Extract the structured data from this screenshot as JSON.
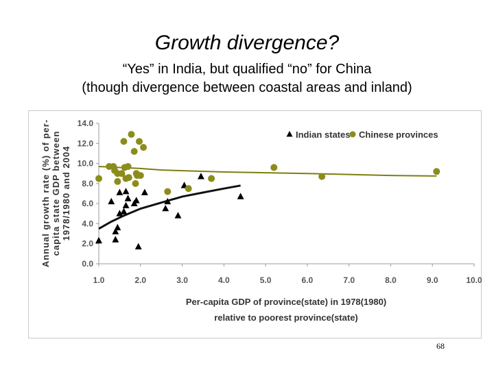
{
  "slide": {
    "title": "Growth divergence?",
    "subtitle_line1": "“Yes” in India, but qualified “no” for China",
    "subtitle_line2": "(though divergence between coastal areas and inland)",
    "page_number": "68"
  },
  "colors": {
    "india": "#000000",
    "china": "#8c8c1c",
    "china_trend": "#7d7d10",
    "india_trend": "#111111",
    "axis": "#9a9a9a"
  },
  "chart_data": {
    "type": "scatter",
    "title": "",
    "xlabel_line1": "Per-capita GDP of province(state) in 1978(1980)",
    "xlabel_line2": "relative to poorest province(state)",
    "ylabel_line1": "Annual growth rate (%) of per-",
    "ylabel_line2": "capita state GDP between",
    "ylabel_line3": "1978/1980 and 2004",
    "xlim": [
      1.0,
      10.0
    ],
    "ylim": [
      0.0,
      14.0
    ],
    "x_ticks": [
      1.0,
      2.0,
      3.0,
      4.0,
      5.0,
      6.0,
      7.0,
      8.0,
      9.0,
      10.0
    ],
    "y_ticks": [
      0.0,
      2.0,
      4.0,
      6.0,
      8.0,
      10.0,
      12.0,
      14.0
    ],
    "x_tick_labels": [
      "1.0",
      "2.0",
      "3.0",
      "4.0",
      "5.0",
      "6.0",
      "7.0",
      "8.0",
      "9.0",
      "10.0"
    ],
    "y_tick_labels": [
      "0.0",
      "2.0",
      "4.0",
      "6.0",
      "8.0",
      "10.0",
      "12.0",
      "14.0"
    ],
    "legend_position": "top-right",
    "series": [
      {
        "name": "Indian states",
        "marker": "triangle",
        "points": [
          [
            1.0,
            2.3
          ],
          [
            1.3,
            6.2
          ],
          [
            1.4,
            3.2
          ],
          [
            1.4,
            2.4
          ],
          [
            1.45,
            3.6
          ],
          [
            1.5,
            5.0
          ],
          [
            1.5,
            7.1
          ],
          [
            1.6,
            5.2
          ],
          [
            1.65,
            5.8
          ],
          [
            1.65,
            7.2
          ],
          [
            1.7,
            6.5
          ],
          [
            1.85,
            6.0
          ],
          [
            1.9,
            6.3
          ],
          [
            1.95,
            1.7
          ],
          [
            2.1,
            7.1
          ],
          [
            2.6,
            5.5
          ],
          [
            2.65,
            6.2
          ],
          [
            2.9,
            4.8
          ],
          [
            3.05,
            7.8
          ],
          [
            3.45,
            8.7
          ],
          [
            4.4,
            6.7
          ]
        ]
      },
      {
        "name": "Chinese provinces",
        "marker": "circle",
        "points": [
          [
            1.0,
            8.5
          ],
          [
            1.25,
            9.7
          ],
          [
            1.35,
            9.7
          ],
          [
            1.38,
            9.3
          ],
          [
            1.45,
            8.2
          ],
          [
            1.45,
            9.0
          ],
          [
            1.55,
            9.0
          ],
          [
            1.6,
            12.2
          ],
          [
            1.62,
            9.6
          ],
          [
            1.65,
            8.5
          ],
          [
            1.7,
            9.7
          ],
          [
            1.72,
            8.6
          ],
          [
            1.78,
            12.9
          ],
          [
            1.85,
            11.2
          ],
          [
            1.88,
            8.0
          ],
          [
            1.9,
            9.0
          ],
          [
            1.92,
            8.8
          ],
          [
            1.97,
            12.2
          ],
          [
            2.0,
            8.8
          ],
          [
            2.07,
            11.6
          ],
          [
            2.65,
            7.2
          ],
          [
            3.15,
            7.5
          ],
          [
            3.7,
            8.5
          ],
          [
            5.2,
            9.6
          ],
          [
            6.35,
            8.7
          ],
          [
            9.1,
            9.2
          ]
        ]
      }
    ],
    "trendlines": [
      {
        "name": "Indian states trend",
        "points": [
          [
            1.0,
            3.5
          ],
          [
            1.3,
            4.2
          ],
          [
            1.6,
            4.8
          ],
          [
            2.0,
            5.5
          ],
          [
            2.5,
            6.1
          ],
          [
            3.0,
            6.7
          ],
          [
            3.5,
            7.1
          ],
          [
            4.0,
            7.5
          ],
          [
            4.4,
            7.8
          ]
        ]
      },
      {
        "name": "Chinese provinces trend",
        "points": [
          [
            1.0,
            9.7
          ],
          [
            2.0,
            9.5
          ],
          [
            2.5,
            9.35
          ],
          [
            4.0,
            9.15
          ],
          [
            6.0,
            9.0
          ],
          [
            8.0,
            8.8
          ],
          [
            9.1,
            8.75
          ]
        ]
      }
    ]
  }
}
